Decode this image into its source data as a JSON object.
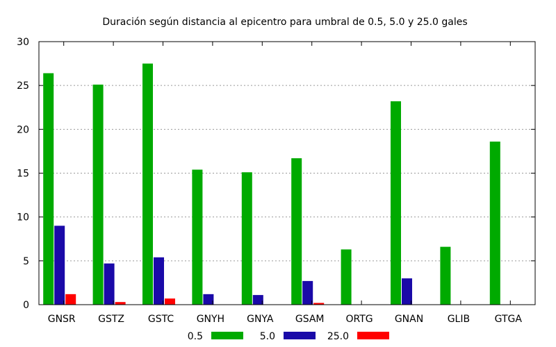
{
  "chart_data": {
    "type": "bar",
    "title": "Duración según distancia al epicentro para umbral de 0.5, 5.0 y 25.0 gales",
    "xlabel": "",
    "ylabel": "",
    "ylim": [
      0,
      30
    ],
    "yticks": [
      "0",
      "5",
      "10",
      "15",
      "20",
      "25",
      "30"
    ],
    "grid": true,
    "legend_position": "bottom",
    "categories": [
      "GNSR",
      "GSTZ",
      "GSTC",
      "GNYH",
      "GNYA",
      "GSAM",
      "ORTG",
      "GNAN",
      "GLIB",
      "GTGA"
    ],
    "series": [
      {
        "name": "0.5",
        "color": "#00aa00",
        "values": [
          26.4,
          25.1,
          27.5,
          15.4,
          15.1,
          16.7,
          6.3,
          23.2,
          6.6,
          18.6
        ]
      },
      {
        "name": "5.0",
        "color": "#1a0aa8",
        "values": [
          9.0,
          4.7,
          5.4,
          1.2,
          1.1,
          2.7,
          0,
          3.0,
          0,
          0
        ]
      },
      {
        "name": "25.0",
        "color": "#ff0000",
        "values": [
          1.2,
          0.3,
          0.7,
          0,
          0,
          0.2,
          0,
          0,
          0,
          0
        ]
      }
    ]
  }
}
